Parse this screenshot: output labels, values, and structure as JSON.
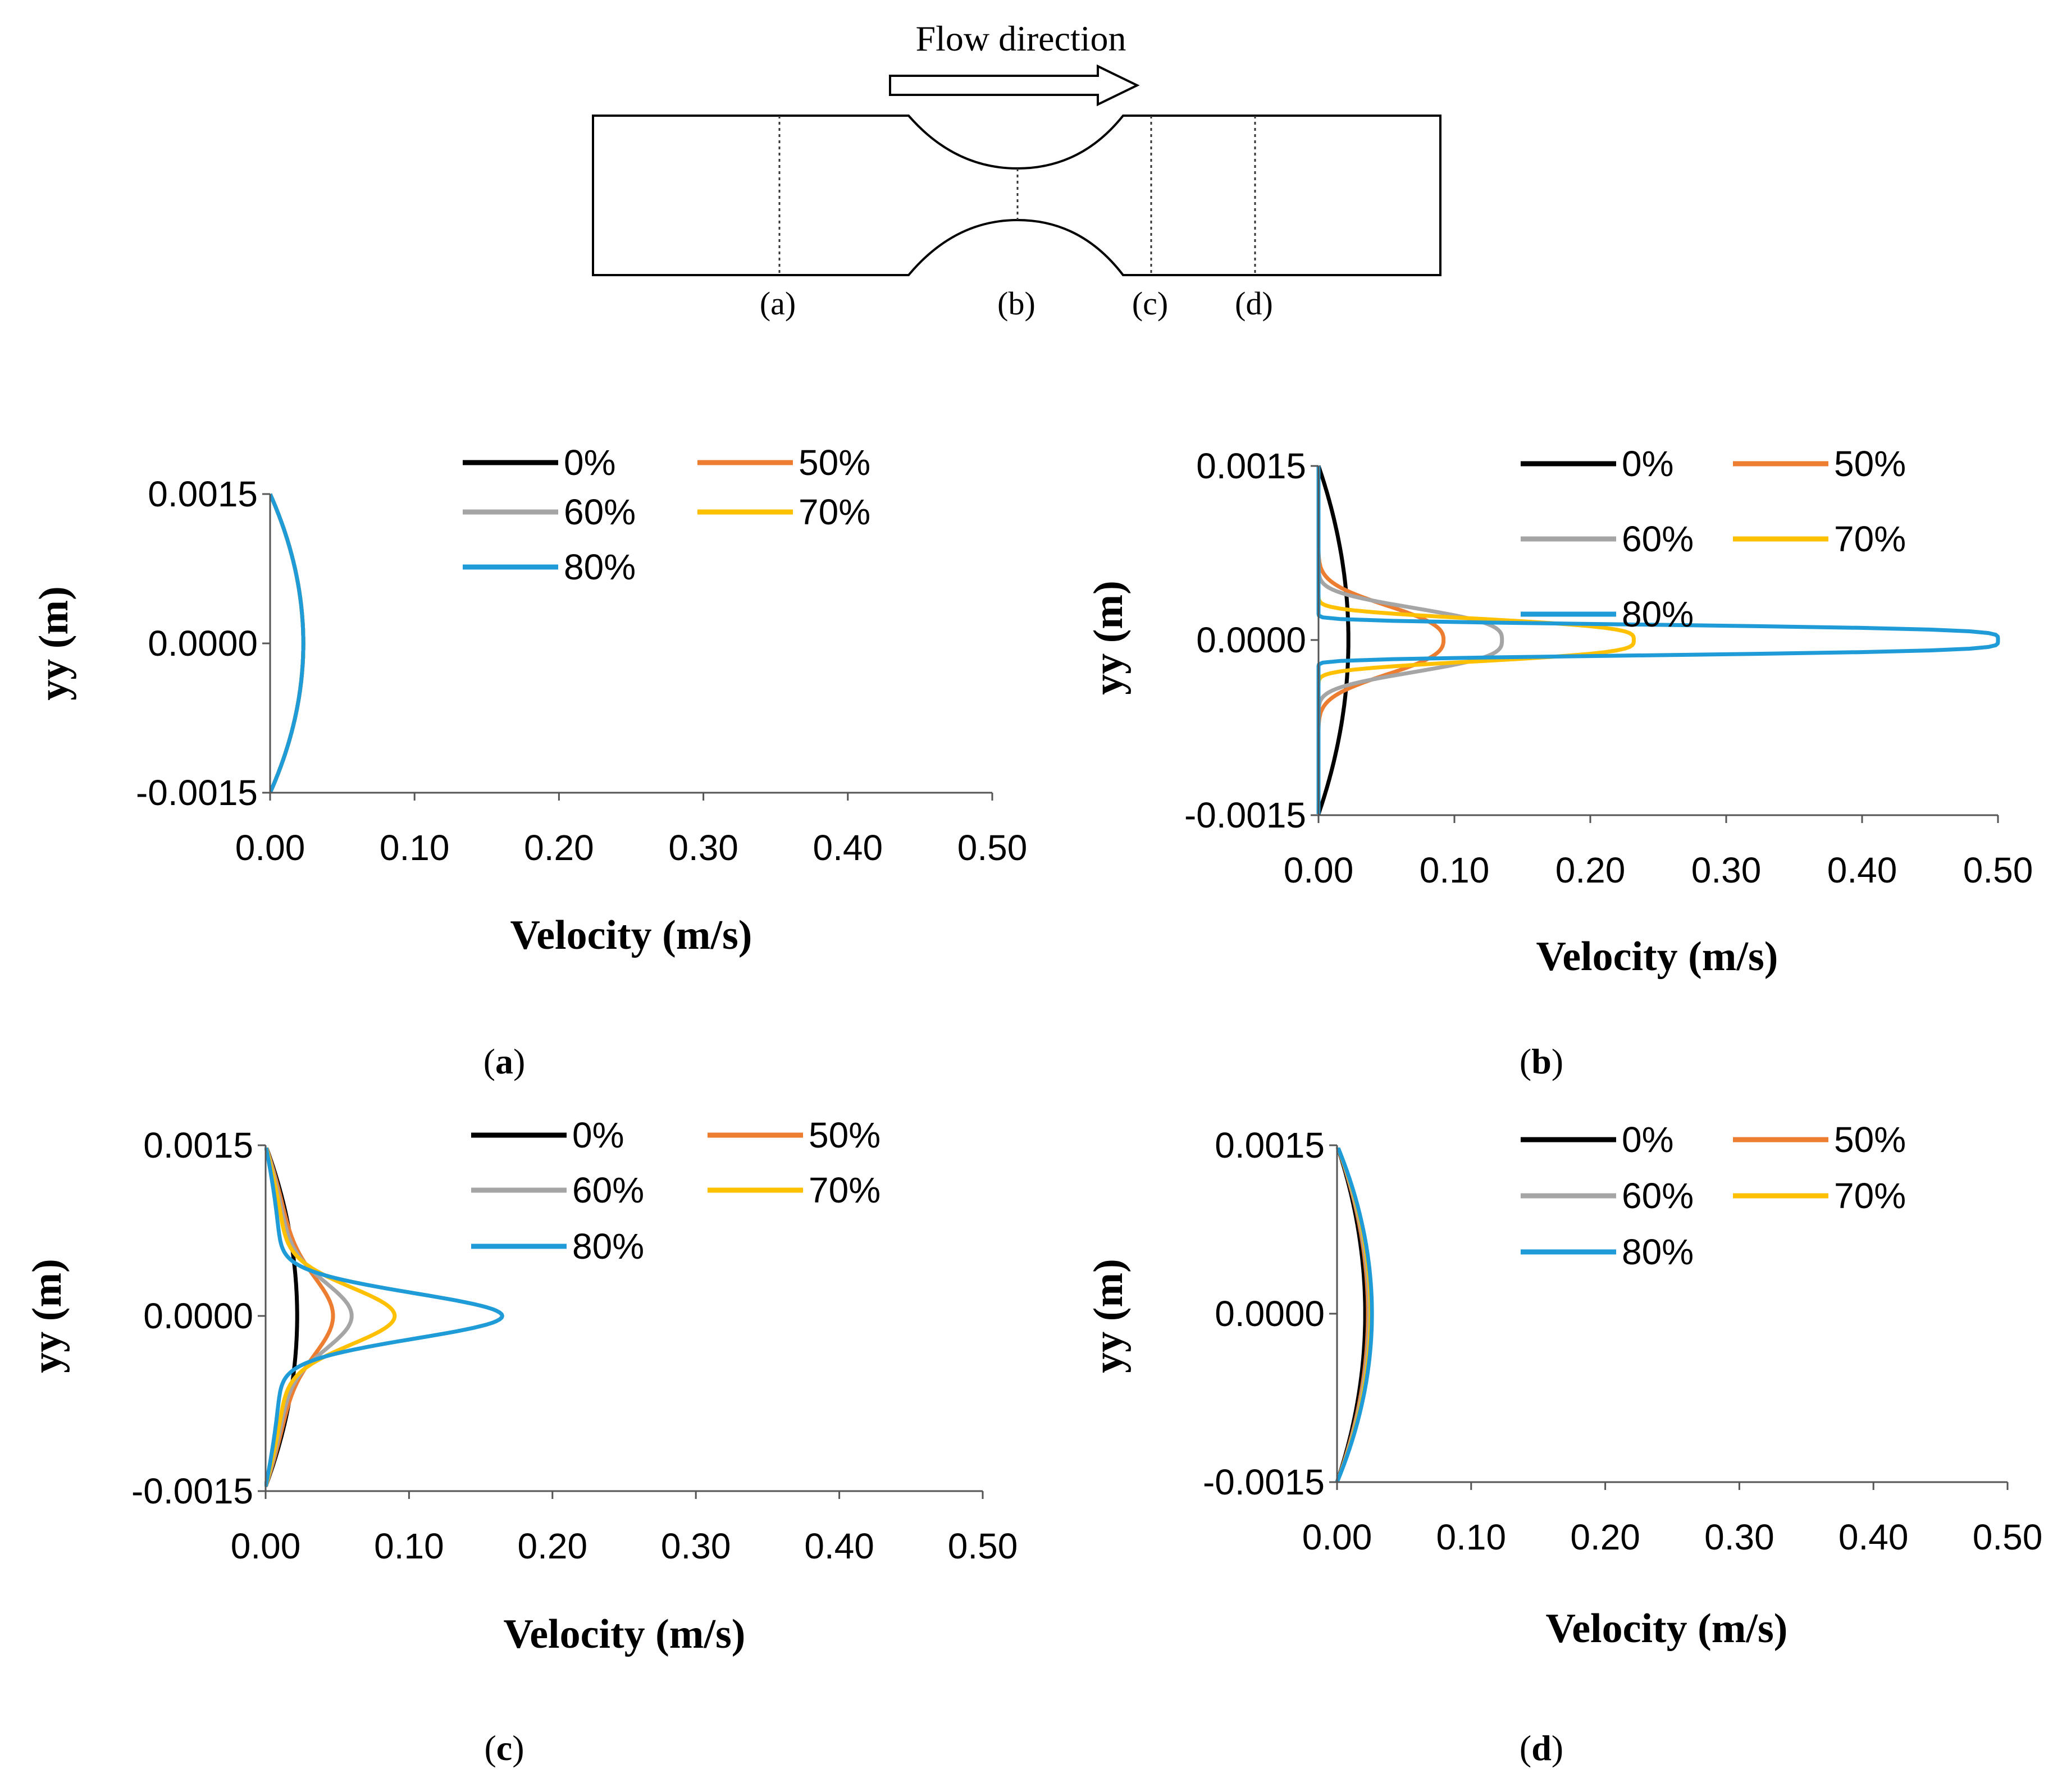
{
  "schematic": {
    "flow_label": "Flow direction",
    "section_labels": [
      "(a)",
      "(b)",
      "(c)",
      "(d)"
    ]
  },
  "colors": {
    "0%": "#000000",
    "50%": "#ED7D31",
    "60%": "#A5A5A5",
    "70%": "#FFC000",
    "80%": "#1F9BD7"
  },
  "chart_data": [
    {
      "id": "a",
      "type": "line",
      "caption": "(a)",
      "xlabel": "Velocity (m/s)",
      "ylabel": "yy (m)",
      "xlim": [
        0,
        0.5
      ],
      "ylim": [
        -0.0015,
        0.0015
      ],
      "xticks": [
        "0.00",
        "0.10",
        "0.20",
        "0.30",
        "0.40",
        "0.50"
      ],
      "yticks": [
        "-0.0015",
        "0.0000",
        "0.0015"
      ],
      "legend": [
        "0%",
        "50%",
        "60%",
        "70%",
        "80%"
      ],
      "series": [
        {
          "name": "0%",
          "shape": "parabolic",
          "peak": 0.023
        },
        {
          "name": "50%",
          "shape": "parabolic",
          "peak": 0.023
        },
        {
          "name": "60%",
          "shape": "parabolic",
          "peak": 0.023
        },
        {
          "name": "70%",
          "shape": "parabolic",
          "peak": 0.023
        },
        {
          "name": "80%",
          "shape": "parabolic",
          "peak": 0.023
        }
      ]
    },
    {
      "id": "b",
      "type": "line",
      "caption": "(b)",
      "xlabel": "Velocity (m/s)",
      "ylabel": "yy (m)",
      "xlim": [
        0,
        0.5
      ],
      "ylim": [
        -0.0015,
        0.0015
      ],
      "xticks": [
        "0.00",
        "0.10",
        "0.20",
        "0.30",
        "0.40",
        "0.50"
      ],
      "yticks": [
        "-0.0015",
        "0.0000",
        "0.0015"
      ],
      "legend": [
        "0%",
        "50%",
        "60%",
        "70%",
        "80%"
      ],
      "series": [
        {
          "name": "0%",
          "shape": "parabolic",
          "peak": 0.022,
          "half_width": 0.0015
        },
        {
          "name": "50%",
          "shape": "plug",
          "peak": 0.092,
          "half_width": 0.0008,
          "sharpness": 2.5
        },
        {
          "name": "60%",
          "shape": "plug",
          "peak": 0.135,
          "half_width": 0.0007,
          "sharpness": 3
        },
        {
          "name": "70%",
          "shape": "plug",
          "peak": 0.232,
          "half_width": 0.00045,
          "sharpness": 3.5
        },
        {
          "name": "80%",
          "shape": "plug",
          "peak": 0.5,
          "half_width": 0.00031,
          "sharpness": 5
        }
      ]
    },
    {
      "id": "c",
      "type": "line",
      "caption": "(c)",
      "xlabel": "Velocity (m/s)",
      "ylabel": "yy (m)",
      "xlim": [
        0,
        0.5
      ],
      "ylim": [
        -0.0015,
        0.0015
      ],
      "xticks": [
        "0.00",
        "0.10",
        "0.20",
        "0.30",
        "0.40",
        "0.50"
      ],
      "yticks": [
        "-0.0015",
        "0.0000",
        "0.0015"
      ],
      "legend": [
        "0%",
        "50%",
        "60%",
        "70%",
        "80%"
      ],
      "series": [
        {
          "name": "0%",
          "shape": "parabolic",
          "peak": 0.022
        },
        {
          "name": "50%",
          "shape": "bell",
          "peak": 0.047,
          "base": 0.02,
          "spread": 0.00045
        },
        {
          "name": "60%",
          "shape": "bell",
          "peak": 0.06,
          "base": 0.018,
          "spread": 0.0004
        },
        {
          "name": "70%",
          "shape": "bell",
          "peak": 0.09,
          "base": 0.016,
          "spread": 0.00035
        },
        {
          "name": "80%",
          "shape": "bell",
          "peak": 0.165,
          "base": 0.012,
          "spread": 0.00028
        }
      ]
    },
    {
      "id": "d",
      "type": "line",
      "caption": "(d)",
      "xlabel": "Velocity (m/s)",
      "ylabel": "yy (m)",
      "xlim": [
        0,
        0.5
      ],
      "ylim": [
        -0.0015,
        0.0015
      ],
      "xticks": [
        "0.00",
        "0.10",
        "0.20",
        "0.30",
        "0.40",
        "0.50"
      ],
      "yticks": [
        "-0.0015",
        "0.0000",
        "0.0015"
      ],
      "legend": [
        "0%",
        "50%",
        "60%",
        "70%",
        "80%"
      ],
      "series": [
        {
          "name": "0%",
          "shape": "parabolic",
          "peak": 0.021
        },
        {
          "name": "50%",
          "shape": "parabolic",
          "peak": 0.023
        },
        {
          "name": "60%",
          "shape": "parabolic",
          "peak": 0.024
        },
        {
          "name": "70%",
          "shape": "parabolic",
          "peak": 0.025
        },
        {
          "name": "80%",
          "shape": "parabolic",
          "peak": 0.026
        }
      ]
    }
  ]
}
